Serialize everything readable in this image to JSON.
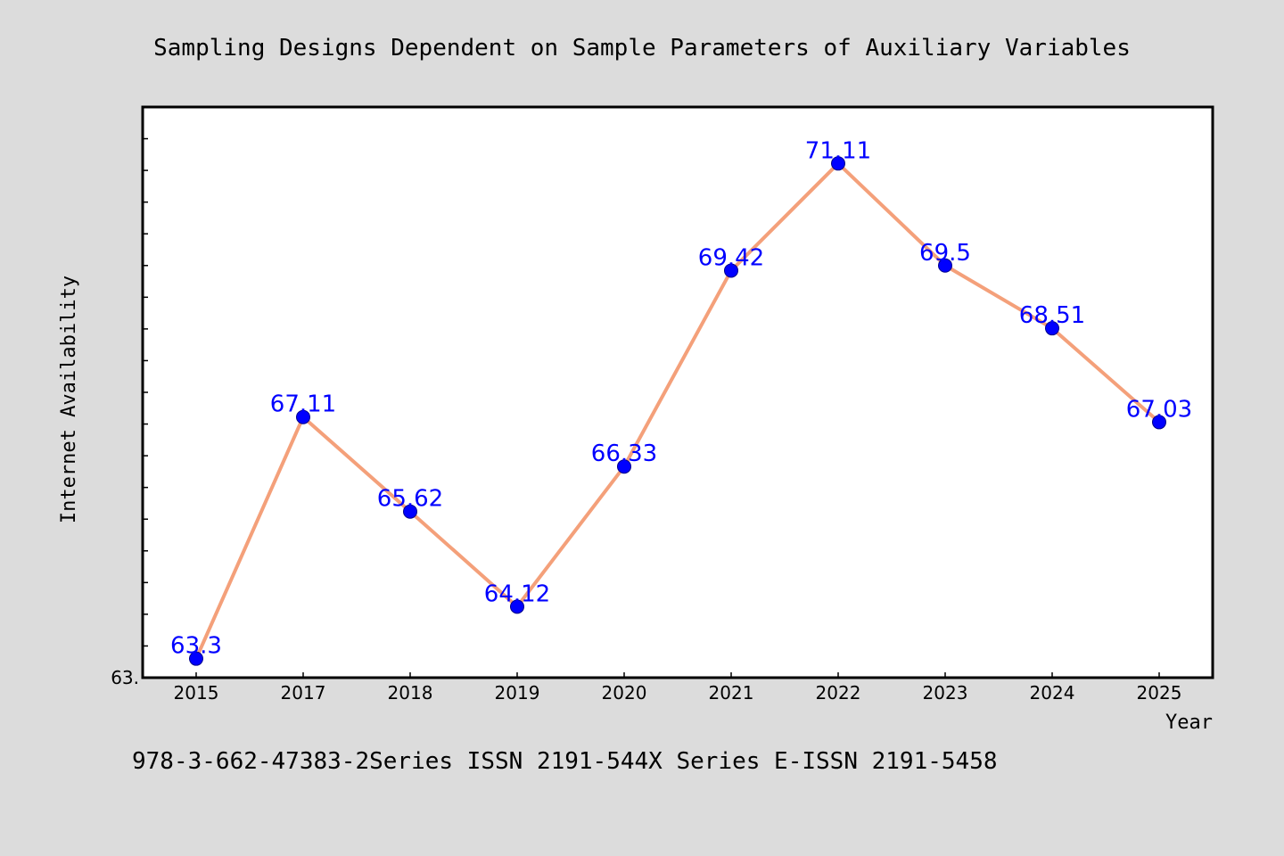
{
  "page": {
    "footer": "978-3-662-47383-2Series ISSN 2191-544X Series E-ISSN 2191-5458"
  },
  "chart_data": {
    "type": "line",
    "title": "Sampling Designs Dependent on Sample Parameters of Auxiliary Variables",
    "xlabel": "Year",
    "ylabel": "Internet Availability",
    "categories": [
      "2015",
      "2017",
      "2018",
      "2019",
      "2020",
      "2021",
      "2022",
      "2023",
      "2024",
      "2025"
    ],
    "series": [
      {
        "values": [
          63.3,
          67.11,
          65.62,
          64.12,
          66.33,
          69.42,
          71.11,
          69.5,
          68.51,
          67.03
        ],
        "data_labels": [
          "63.3",
          "67.11",
          "65.62",
          "64.12",
          "66.33",
          "69.42",
          "71.11",
          "69.5",
          "68.51",
          "67.03"
        ]
      }
    ],
    "y_tick_label": "63.",
    "ylim": [
      63.0,
      72.0
    ],
    "grid": false,
    "legend": "none",
    "colors": {
      "line": "#f4a07a",
      "marker": "#0000ff",
      "data_label": "#0000ff",
      "plot_background": "#ffffff",
      "figure_background": "#dcdcdc"
    }
  }
}
